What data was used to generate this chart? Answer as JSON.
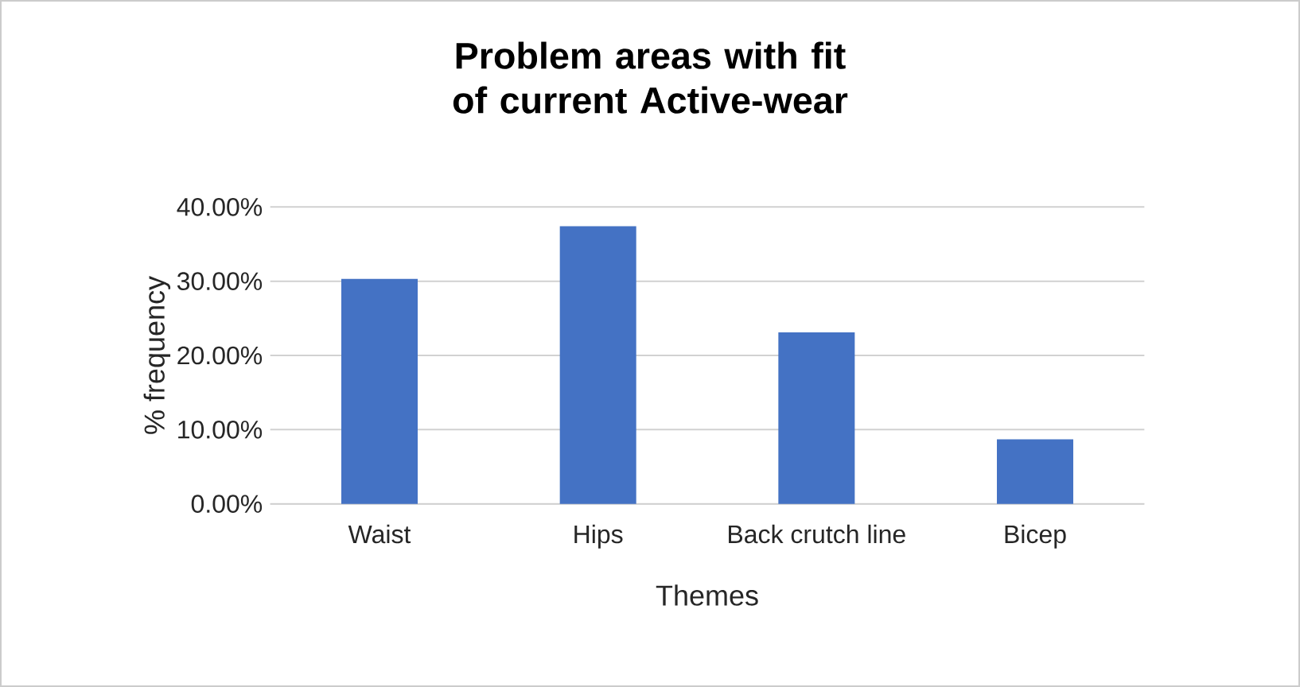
{
  "chart_data": {
    "type": "bar",
    "title": "Problem areas with fit of current Active-wear",
    "xlabel": "Themes",
    "ylabel": "%  frequency",
    "categories": [
      "Waist",
      "Hips",
      "Back crutch line",
      "Bicep"
    ],
    "values": [
      30.3,
      37.4,
      23.1,
      8.7
    ],
    "color": "#4472c4",
    "ylim": [
      0,
      40
    ],
    "yticks": [
      {
        "value": 0,
        "label": "0.00%"
      },
      {
        "value": 10,
        "label": "10.00%"
      },
      {
        "value": 20,
        "label": "20.00%"
      },
      {
        "value": 30,
        "label": "30.00%"
      },
      {
        "value": 40,
        "label": "40.00%"
      }
    ],
    "grid": "y"
  }
}
